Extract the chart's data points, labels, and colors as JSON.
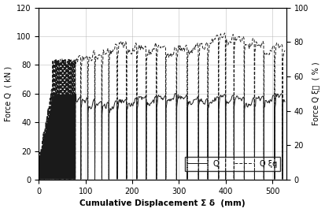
{
  "xlabel": "Cumulative Displacement Σ δ  (mm)",
  "ylabel_left": "Force Q  ( kN )",
  "ylabel_right": "Force Q ξᵱ  ( % )",
  "xlim": [
    0,
    530
  ],
  "ylim_left": [
    0,
    120
  ],
  "ylim_right": [
    0,
    100
  ],
  "yticks_left": [
    0,
    20,
    40,
    60,
    80,
    100,
    120
  ],
  "yticks_right": [
    0,
    20,
    40,
    60,
    80,
    100
  ],
  "xticks": [
    0,
    100,
    200,
    300,
    400,
    500
  ],
  "legend_Q": "Q",
  "legend_Qq": "Q ξq",
  "line_color": "#1a1a1a",
  "background_color": "#ffffff",
  "grid_color": "#b0b0b0",
  "drop_positions_dense": [
    2,
    4,
    6,
    8,
    10,
    12,
    14,
    16,
    18,
    20,
    22,
    24,
    26,
    28,
    30,
    32,
    34,
    36,
    38,
    40,
    42,
    44,
    46,
    48,
    50,
    52,
    54,
    56,
    58,
    60,
    62,
    64,
    66,
    68,
    70,
    72,
    74,
    76,
    78
  ],
  "drop_positions_sparse": [
    90,
    105,
    120,
    135,
    150,
    168,
    188,
    210,
    230,
    252,
    272,
    295,
    318,
    342,
    362,
    385,
    400,
    418,
    440,
    462,
    482,
    505,
    522
  ],
  "Q_base": 58,
  "Qxi_base": 68,
  "Q_peak_sparse": [
    58,
    57,
    56,
    55,
    54,
    55,
    56,
    57,
    58,
    58,
    59,
    60,
    59,
    58,
    57,
    58,
    60,
    59,
    58,
    57,
    58,
    59,
    60
  ],
  "Qxi_peak_sparse": [
    72,
    72,
    75,
    73,
    76,
    79,
    80,
    79,
    78,
    79,
    78,
    77,
    78,
    79,
    80,
    84,
    85,
    84,
    83,
    82,
    80,
    78,
    79
  ]
}
